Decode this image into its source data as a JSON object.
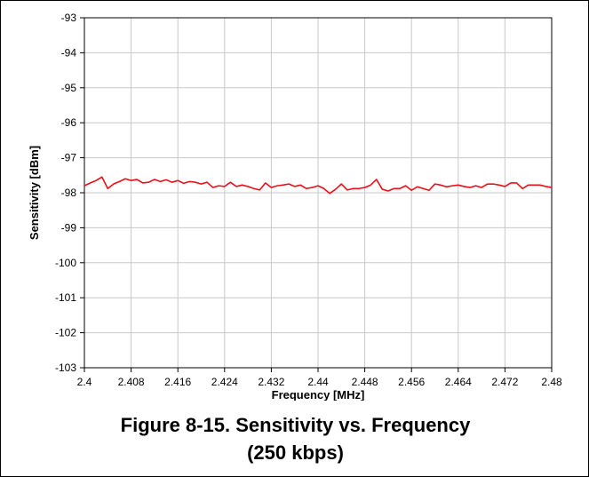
{
  "figure": {
    "caption_line1": "Figure 8-15. Sensitivity vs. Frequency",
    "caption_line2": "(250 kbps)"
  },
  "colors": {
    "series": "#e8101a",
    "grid": "#c8c8c8",
    "axis": "#000000",
    "background": "#ffffff"
  },
  "chart_data": {
    "type": "line",
    "title": "",
    "xlabel": "Frequency [MHz]",
    "ylabel": "Sensitivity [dBm]",
    "xlim": [
      2.4,
      2.48
    ],
    "ylim": [
      -103,
      -93
    ],
    "xticks": [
      2.4,
      2.408,
      2.416,
      2.424,
      2.432,
      2.44,
      2.448,
      2.456,
      2.464,
      2.472,
      2.48
    ],
    "xtick_labels": [
      "2.4",
      "2.408",
      "2.416",
      "2.424",
      "2.432",
      "2.44",
      "2.448",
      "2.456",
      "2.464",
      "2.472",
      "2.48"
    ],
    "yticks": [
      -103,
      -102,
      -101,
      -100,
      -99,
      -98,
      -97,
      -96,
      -95,
      -94,
      -93
    ],
    "ytick_labels": [
      "-103",
      "-102",
      "-101",
      "-100",
      "-99",
      "-98",
      "-97",
      "-96",
      "-95",
      "-94",
      "-93"
    ],
    "grid": true,
    "legend": "none",
    "series": [
      {
        "x": [
          2.4,
          2.401,
          2.402,
          2.403,
          2.404,
          2.405,
          2.406,
          2.407,
          2.408,
          2.409,
          2.41,
          2.411,
          2.412,
          2.413,
          2.414,
          2.415,
          2.416,
          2.417,
          2.418,
          2.419,
          2.42,
          2.421,
          2.422,
          2.423,
          2.424,
          2.425,
          2.426,
          2.427,
          2.428,
          2.429,
          2.43,
          2.431,
          2.432,
          2.433,
          2.434,
          2.435,
          2.436,
          2.437,
          2.438,
          2.439,
          2.44,
          2.441,
          2.442,
          2.443,
          2.444,
          2.445,
          2.446,
          2.447,
          2.448,
          2.449,
          2.45,
          2.451,
          2.452,
          2.453,
          2.454,
          2.455,
          2.456,
          2.457,
          2.458,
          2.459,
          2.46,
          2.461,
          2.462,
          2.463,
          2.464,
          2.465,
          2.466,
          2.467,
          2.468,
          2.469,
          2.47,
          2.471,
          2.472,
          2.473,
          2.474,
          2.475,
          2.476,
          2.477,
          2.478,
          2.479,
          2.48
        ],
        "y": [
          -97.8,
          -97.72,
          -97.65,
          -97.55,
          -97.88,
          -97.75,
          -97.68,
          -97.6,
          -97.65,
          -97.62,
          -97.72,
          -97.7,
          -97.62,
          -97.68,
          -97.63,
          -97.7,
          -97.65,
          -97.73,
          -97.68,
          -97.7,
          -97.75,
          -97.7,
          -97.85,
          -97.8,
          -97.82,
          -97.7,
          -97.82,
          -97.78,
          -97.82,
          -97.88,
          -97.92,
          -97.72,
          -97.85,
          -97.8,
          -97.78,
          -97.75,
          -97.82,
          -97.78,
          -97.88,
          -97.85,
          -97.8,
          -97.88,
          -98.02,
          -97.9,
          -97.75,
          -97.92,
          -97.88,
          -97.88,
          -97.85,
          -97.78,
          -97.62,
          -97.9,
          -97.95,
          -97.88,
          -97.88,
          -97.8,
          -97.93,
          -97.83,
          -97.88,
          -97.93,
          -97.75,
          -97.78,
          -97.83,
          -97.8,
          -97.78,
          -97.82,
          -97.85,
          -97.8,
          -97.85,
          -97.75,
          -97.75,
          -97.78,
          -97.82,
          -97.72,
          -97.72,
          -97.88,
          -97.78,
          -97.78,
          -97.78,
          -97.82,
          -97.85
        ]
      }
    ]
  }
}
